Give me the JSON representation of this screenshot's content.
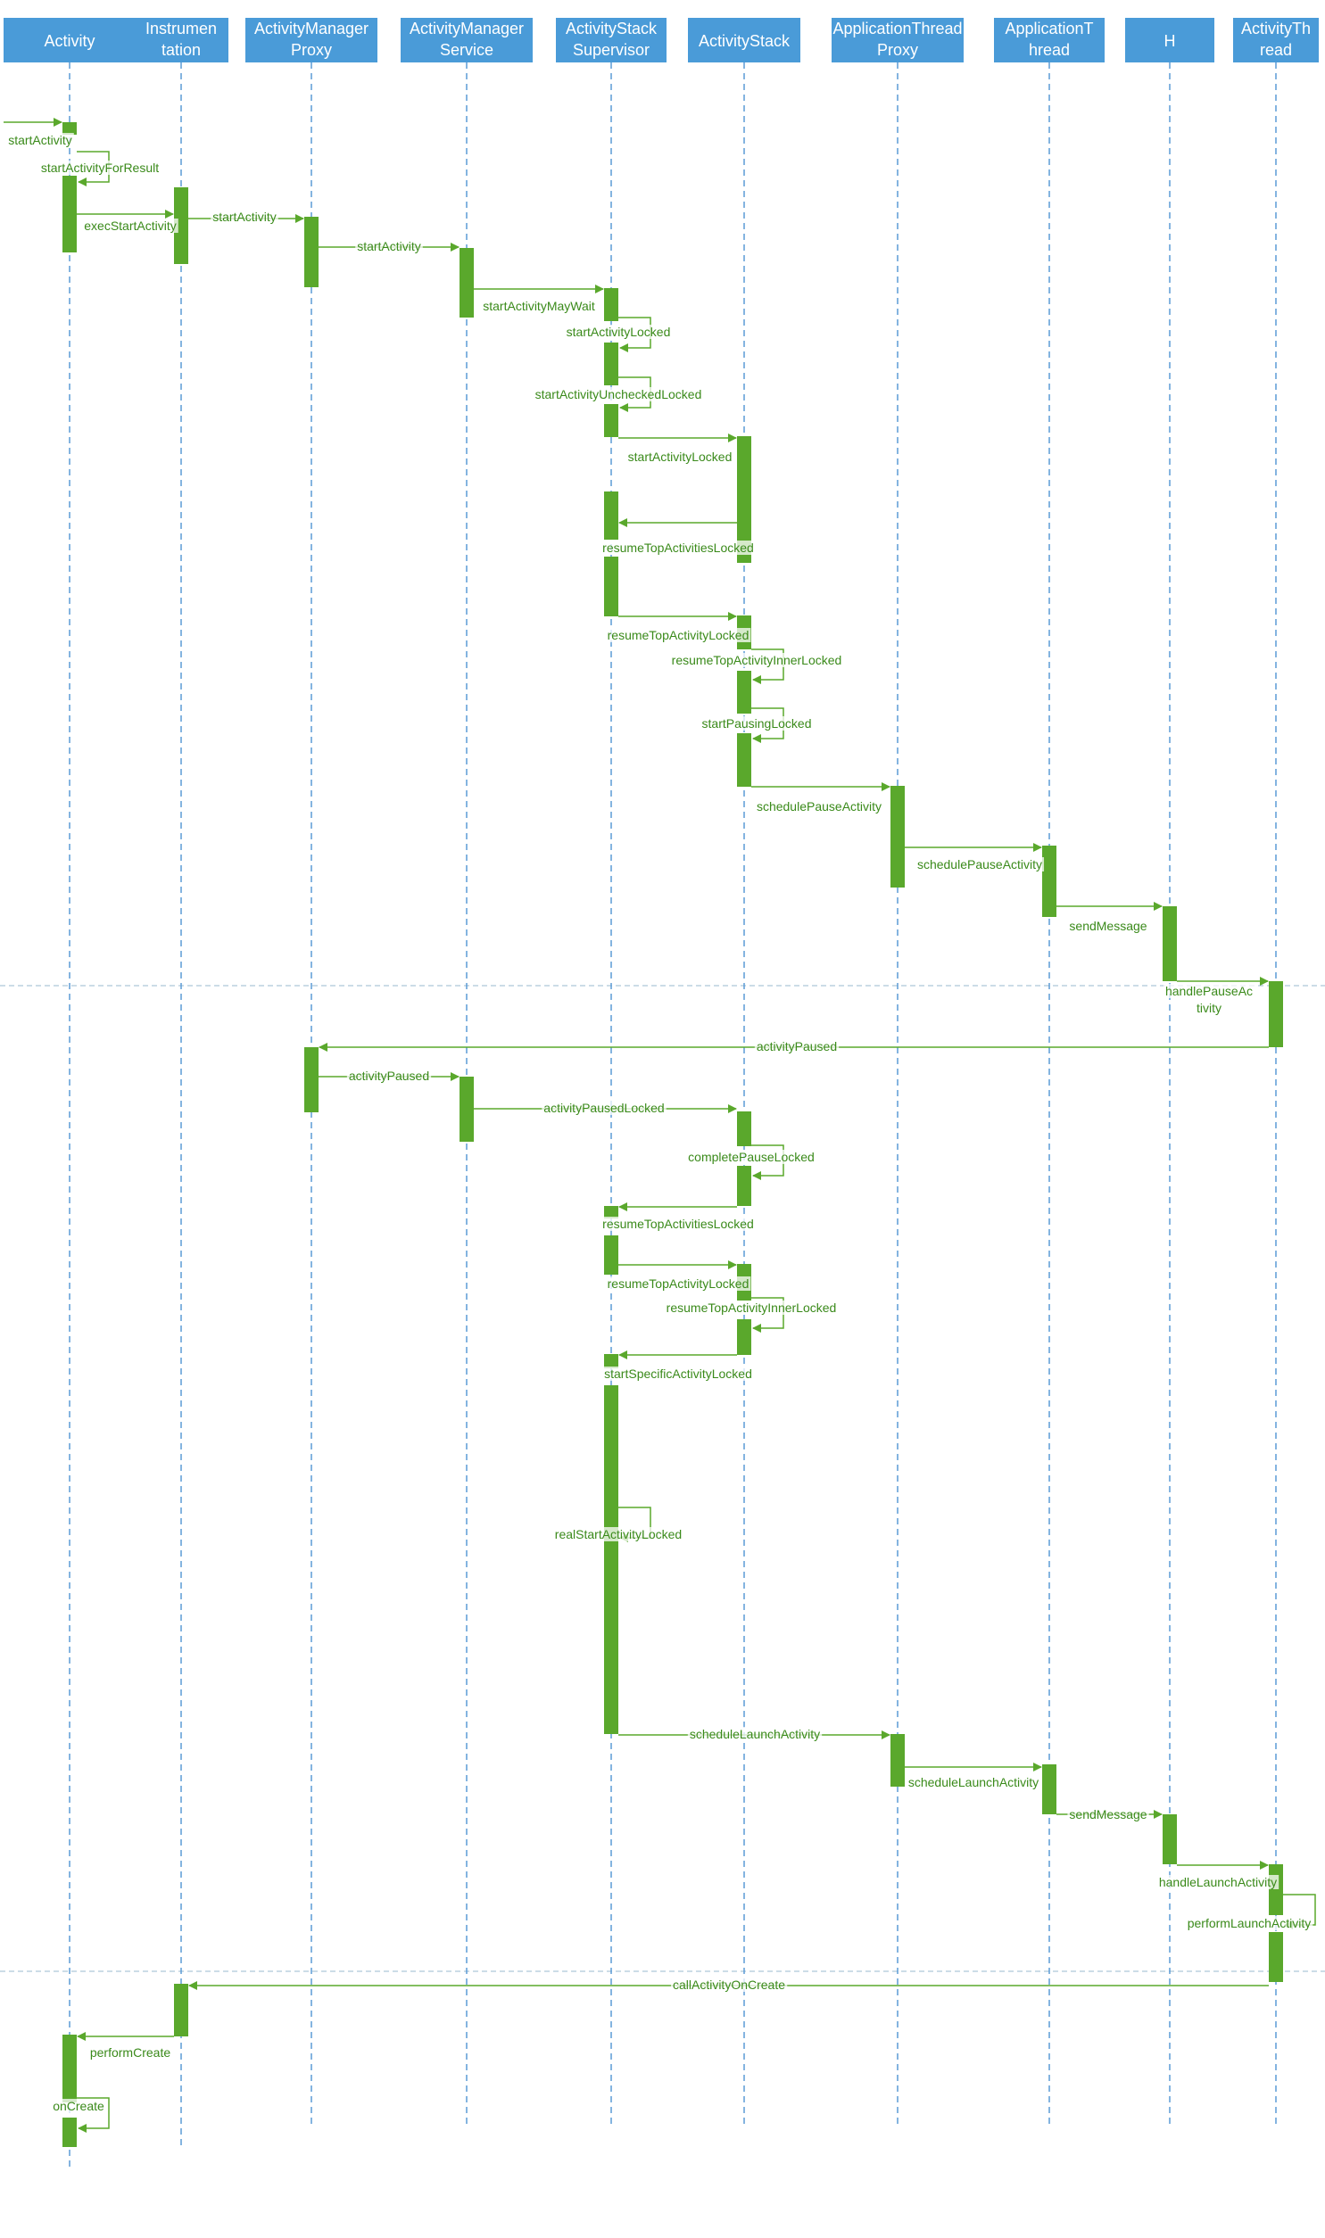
{
  "colors": {
    "header_fill": "#4a9bd8",
    "header_text": "#ffffff",
    "lifeline": "#5b9bd5",
    "activation": "#5aa82c",
    "arrow": "#5aa82c",
    "label": "#3a8a1a",
    "separator": "#9ab8cf"
  },
  "participants": [
    {
      "id": "activity",
      "lines": [
        "Activity"
      ]
    },
    {
      "id": "instrumentation",
      "lines": [
        "Instrumen",
        "tation"
      ]
    },
    {
      "id": "am-proxy",
      "lines": [
        "ActivityManager",
        "Proxy"
      ]
    },
    {
      "id": "am-service",
      "lines": [
        "ActivityManager",
        "Service"
      ]
    },
    {
      "id": "stack-supervisor",
      "lines": [
        "ActivityStack",
        "Supervisor"
      ]
    },
    {
      "id": "activity-stack",
      "lines": [
        "ActivityStack"
      ]
    },
    {
      "id": "at-proxy",
      "lines": [
        "ApplicationThread",
        "Proxy"
      ]
    },
    {
      "id": "app-thread",
      "lines": [
        "ApplicationT",
        "hread"
      ]
    },
    {
      "id": "h",
      "lines": [
        "H"
      ]
    },
    {
      "id": "activity-thread",
      "lines": [
        "ActivityTh",
        "read"
      ]
    }
  ],
  "messages": [
    {
      "label": "startActivity"
    },
    {
      "label": "startActivityForResult"
    },
    {
      "label": "execStartActivity"
    },
    {
      "label": "startActivity"
    },
    {
      "label": "startActivity"
    },
    {
      "label": "startActivityMayWait"
    },
    {
      "label": "startActivityLocked"
    },
    {
      "label": "startActivityUncheckedLocked"
    },
    {
      "label": "startActivityLocked"
    },
    {
      "label": "resumeTopActivitiesLocked"
    },
    {
      "label": "resumeTopActivityLocked"
    },
    {
      "label": "resumeTopActivityInnerLocked"
    },
    {
      "label": "startPausingLocked"
    },
    {
      "label": "schedulePauseActivity"
    },
    {
      "label": "schedulePauseActivity"
    },
    {
      "label": "sendMessage"
    },
    {
      "label": "handlePauseAc tivity"
    },
    {
      "label": "activityPaused"
    },
    {
      "label": "activityPaused"
    },
    {
      "label": "activityPausedLocked"
    },
    {
      "label": "completePauseLocked"
    },
    {
      "label": "resumeTopActivitiesLocked"
    },
    {
      "label": "resumeTopActivityLocked"
    },
    {
      "label": "resumeTopActivityInnerLocked"
    },
    {
      "label": "startSpecificActivityLocked"
    },
    {
      "label": "realStartActivityLocked"
    },
    {
      "label": "scheduleLaunchActivity"
    },
    {
      "label": "scheduleLaunchActivity"
    },
    {
      "label": "sendMessage"
    },
    {
      "label": "handleLaunchActivity"
    },
    {
      "label": "performLaunchActivity"
    },
    {
      "label": "callActivityOnCreate"
    },
    {
      "label": "performCreate"
    },
    {
      "label": "onCreate"
    }
  ]
}
